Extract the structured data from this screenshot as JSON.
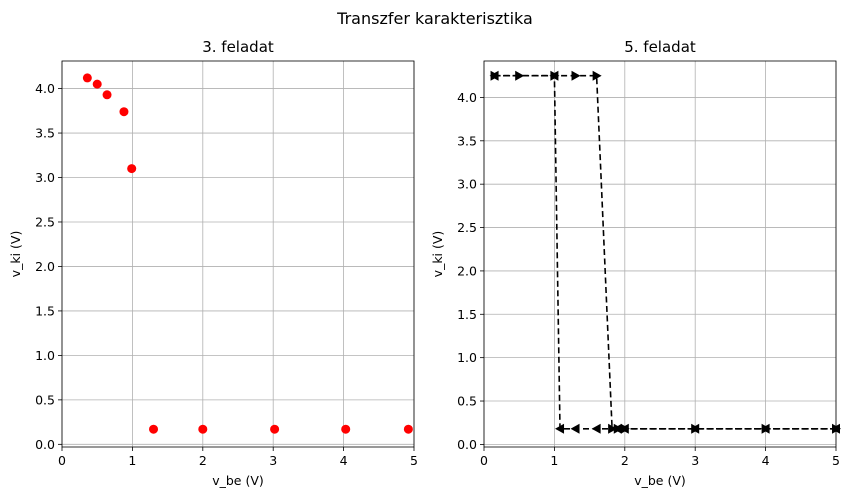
{
  "suptitle": "Transzfer karakterisztika",
  "colors": {
    "scatter": "#ff0000",
    "line": "#000000",
    "grid": "#b0b0b0"
  },
  "chart_data": [
    {
      "type": "scatter",
      "title": "3. feladat",
      "xlabel": "v_be (V)",
      "ylabel": "v_ki (V)",
      "xlim": [
        0,
        5
      ],
      "ylim": [
        -0.03,
        4.31
      ],
      "xticks": [
        0,
        1,
        2,
        3,
        4,
        5
      ],
      "yticks": [
        0.0,
        0.5,
        1.0,
        1.5,
        2.0,
        2.5,
        3.0,
        3.5,
        4.0
      ],
      "grid": true,
      "series": [
        {
          "marker": "circle",
          "x": [
            0.36,
            0.5,
            0.64,
            0.88,
            0.99,
            1.3,
            2.0,
            3.02,
            4.03,
            4.92
          ],
          "y": [
            4.12,
            4.05,
            3.93,
            3.74,
            3.1,
            0.17,
            0.17,
            0.17,
            0.17,
            0.17
          ]
        }
      ]
    },
    {
      "type": "line",
      "title": "5. feladat",
      "xlabel": "v_be (V)",
      "ylabel": "v_ki (V)",
      "xlim": [
        0,
        5
      ],
      "ylim": [
        -0.03,
        4.42
      ],
      "xticks": [
        0,
        1,
        2,
        3,
        4,
        5
      ],
      "yticks": [
        0.0,
        0.5,
        1.0,
        1.5,
        2.0,
        2.5,
        3.0,
        3.5,
        4.0
      ],
      "grid": true,
      "series": [
        {
          "style": "dashed",
          "marker": "triangle-right",
          "x": [
            0.15,
            0.5,
            1.0,
            1.3,
            1.6,
            1.82,
            1.9,
            2.0,
            3.0,
            4.0,
            5.0
          ],
          "y": [
            4.25,
            4.25,
            4.25,
            4.25,
            4.25,
            0.18,
            0.18,
            0.18,
            0.18,
            0.18,
            0.18
          ]
        },
        {
          "style": "dashed",
          "marker": "triangle-left",
          "x": [
            5.0,
            4.0,
            3.0,
            2.0,
            1.9,
            1.6,
            1.3,
            1.08,
            1.0,
            0.15
          ],
          "y": [
            0.18,
            0.18,
            0.18,
            0.18,
            0.18,
            0.18,
            0.18,
            0.18,
            4.25,
            4.25
          ]
        }
      ]
    }
  ]
}
